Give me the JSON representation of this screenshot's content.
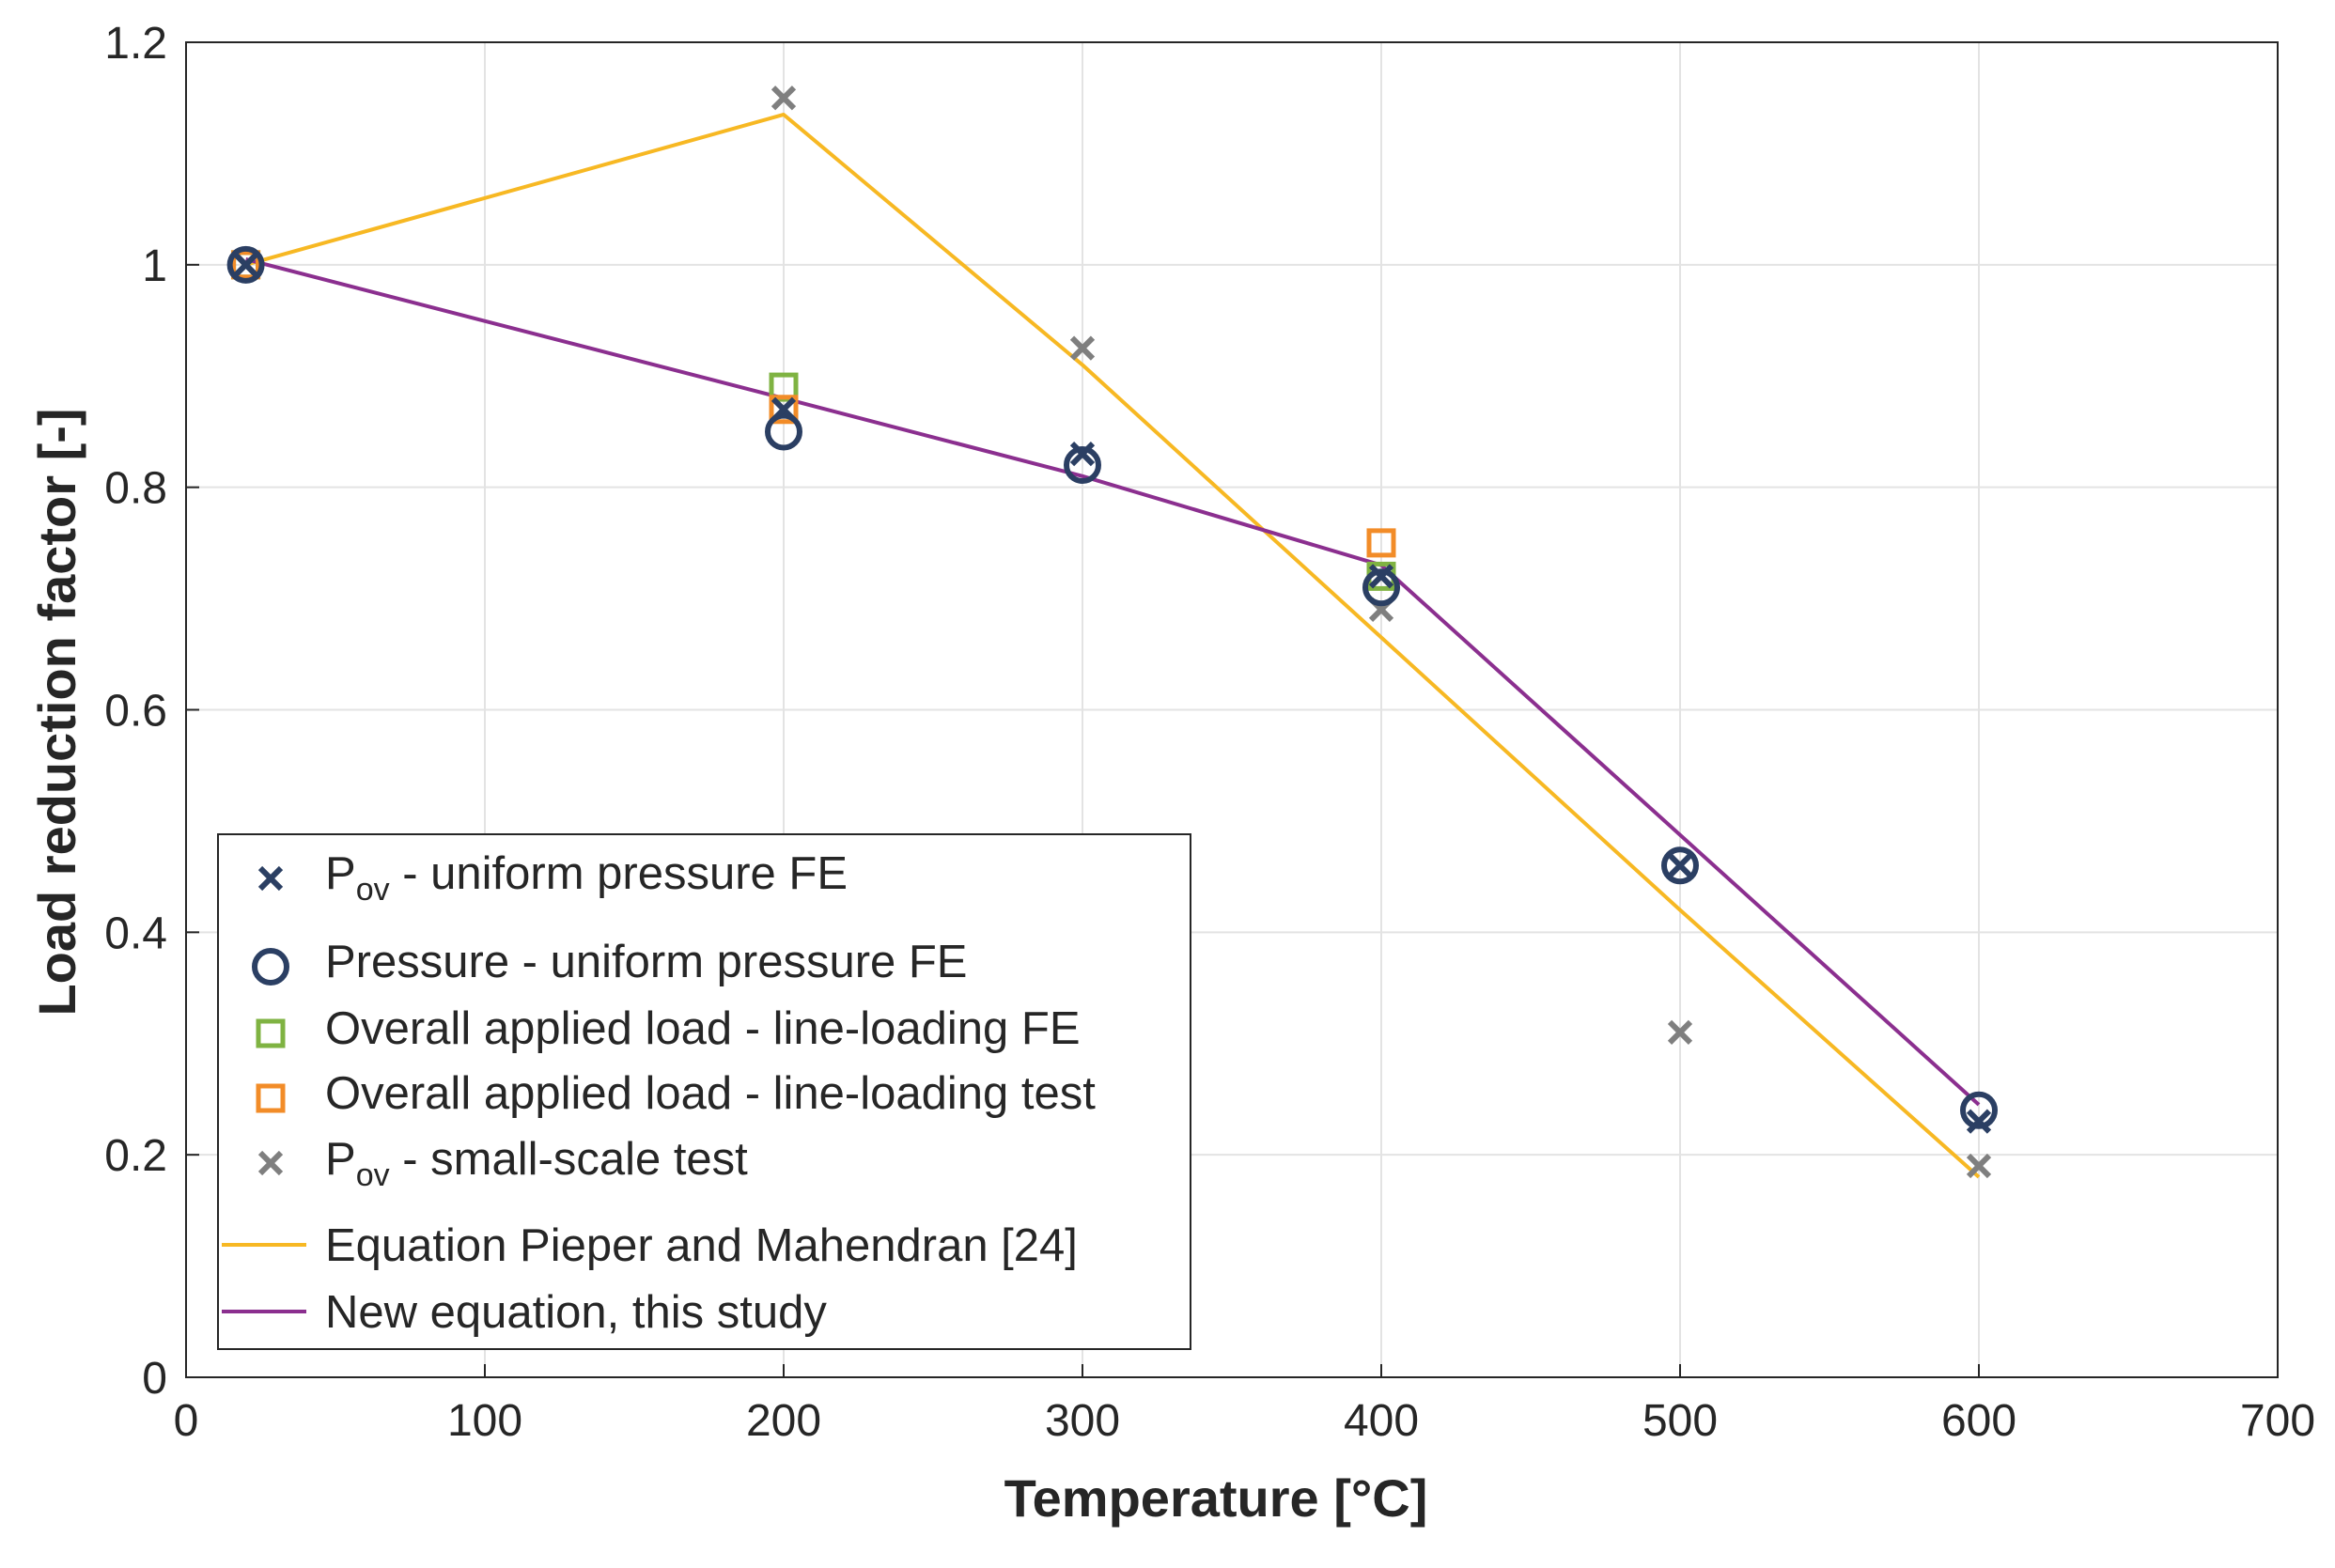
{
  "chart_data": {
    "type": "scatter",
    "title": "",
    "xlabel": "Temperature [°C]",
    "ylabel": "Load reduction factor [-]",
    "xlim": [
      0,
      700
    ],
    "ylim": [
      0,
      1.2
    ],
    "xticks": [
      0,
      100,
      200,
      300,
      400,
      500,
      600,
      700
    ],
    "xtick_labels": [
      "0",
      "100",
      "200",
      "300",
      "400",
      "500",
      "600",
      "700"
    ],
    "yticks": [
      0,
      0.2,
      0.4,
      0.6,
      0.8,
      1,
      1.2
    ],
    "ytick_labels": [
      "0",
      "0.2",
      "0.4",
      "0.6",
      "0.8",
      "1",
      "1.2"
    ],
    "grid": true,
    "legend_position": "bottom-left",
    "series": [
      {
        "id": "pov-uniform-fe",
        "name_main": "P",
        "name_sub": "ov",
        "name_rest": " - uniform pressure FE",
        "marker": "x",
        "color": "#2b3f63",
        "x": [
          20,
          200,
          300,
          400,
          500,
          600
        ],
        "y": [
          1.0,
          0.87,
          0.83,
          0.72,
          0.46,
          0.23
        ]
      },
      {
        "id": "pressure-uniform-fe",
        "name": "Pressure - uniform pressure FE",
        "marker": "circle",
        "color": "#2b3f63",
        "x": [
          20,
          200,
          300,
          400,
          500,
          600
        ],
        "y": [
          1.0,
          0.85,
          0.82,
          0.71,
          0.46,
          0.24
        ]
      },
      {
        "id": "overall-line-fe",
        "name": "Overall applied load - line-loading FE",
        "marker": "square",
        "color": "#7fb342",
        "x": [
          20,
          200,
          400
        ],
        "y": [
          1.0,
          0.89,
          0.72
        ]
      },
      {
        "id": "overall-line-test",
        "name": "Overall applied load - line-loading test",
        "marker": "square",
        "color": "#f28c28",
        "x": [
          20,
          200,
          400
        ],
        "y": [
          1.0,
          0.87,
          0.75
        ]
      },
      {
        "id": "pov-small-scale",
        "name_main": "P",
        "name_sub": "ov",
        "name_rest": " - small-scale test",
        "marker": "x",
        "color": "#7f7f7f",
        "x": [
          20,
          200,
          300,
          400,
          500,
          600
        ],
        "y": [
          1.0,
          1.15,
          0.925,
          0.69,
          0.31,
          0.19
        ]
      },
      {
        "id": "pieper-mahendran",
        "name": "Equation Pieper and Mahendran [24]",
        "marker": "line",
        "color": "#f7b823",
        "x": [
          20,
          200,
          300,
          400,
          500,
          600
        ],
        "y": [
          1.0,
          1.135,
          0.91,
          0.665,
          0.42,
          0.18
        ]
      },
      {
        "id": "new-equation",
        "name": "New equation, this study",
        "marker": "line",
        "color": "#8b2f8f",
        "x": [
          20,
          200,
          300,
          400,
          600
        ],
        "y": [
          1.005,
          0.88,
          0.81,
          0.73,
          0.245
        ]
      }
    ]
  }
}
